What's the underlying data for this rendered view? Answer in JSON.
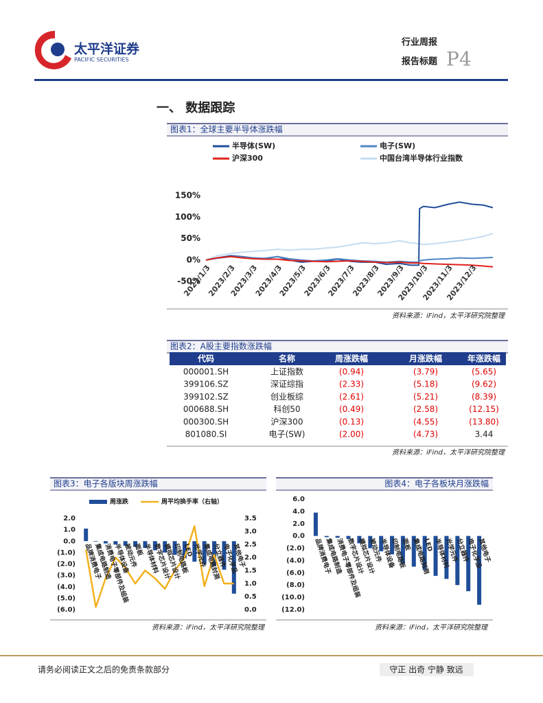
{
  "header": {
    "company": "太平洋证券",
    "company_en": "PACIFIC SECURITIES",
    "report_type": "行业周报",
    "report_title": "报告标题",
    "page": "P4"
  },
  "section_title": "一、 数据跟踪",
  "chart_data": [
    {
      "type": "line",
      "title": "图表1：全球主要半导体涨跌幅",
      "source": "资料来源：iFind，太平洋研究院整理",
      "x": [
        "2023/1/3",
        "2023/1/17",
        "2023/2/3",
        "2023/2/17",
        "2023/3/3",
        "2023/3/17",
        "2023/4/3",
        "2023/4/17",
        "2023/5/3",
        "2023/5/17",
        "2023/6/3",
        "2023/6/17",
        "2023/7/3",
        "2023/7/17",
        "2023/8/3",
        "2023/8/17",
        "2023/9/3",
        "2023/9/17",
        "2023/9/27",
        "2023/9/28",
        "2023/10/3",
        "2023/10/17",
        "2023/11/3",
        "2023/11/17",
        "2023/12/3",
        "2023/12/17",
        "2023/12/29"
      ],
      "series": [
        {
          "name": "半导体(SW)",
          "color": "#1f4e99",
          "values": [
            0,
            5,
            10,
            8,
            5,
            3,
            8,
            0,
            -5,
            -3,
            -2,
            2,
            -3,
            -5,
            -5,
            -10,
            -8,
            -12,
            -12,
            120,
            125,
            122,
            130,
            135,
            130,
            128,
            122
          ]
        },
        {
          "name": "电子(SW)",
          "color": "#4f86c6",
          "values": [
            0,
            4,
            8,
            7,
            5,
            4,
            8,
            3,
            0,
            -2,
            0,
            3,
            0,
            -2,
            -3,
            -5,
            -3,
            -5,
            -5,
            -2,
            0,
            2,
            3,
            5,
            4,
            5,
            6
          ]
        },
        {
          "name": "沪深300",
          "color": "#e0201b",
          "values": [
            0,
            5,
            8,
            5,
            3,
            2,
            2,
            -1,
            -2,
            -3,
            -4,
            -3,
            -2,
            -3,
            -5,
            -6,
            -5,
            -7,
            -7,
            -7,
            -8,
            -9,
            -10,
            -11,
            -12,
            -14,
            -16
          ]
        },
        {
          "name": "中国台湾半导体行业指数",
          "color": "#c5dcf0",
          "values": [
            0,
            10,
            15,
            18,
            20,
            22,
            25,
            23,
            25,
            25,
            28,
            30,
            35,
            40,
            38,
            40,
            45,
            40,
            38,
            38,
            36,
            38,
            42,
            45,
            50,
            55,
            62
          ]
        }
      ],
      "ylim": [
        -50,
        150
      ],
      "yticks": [
        {
          "value": -50,
          "label": "-50%"
        },
        {
          "value": 0,
          "label": "0%"
        },
        {
          "value": 50,
          "label": "50%"
        },
        {
          "value": 100,
          "label": "100%"
        },
        {
          "value": 150,
          "label": "150%"
        }
      ],
      "xticks": [
        "2023/1/3",
        "2023/2/3",
        "2023/3/3",
        "2023/4/3",
        "2023/5/3",
        "2023/6/3",
        "2023/7/3",
        "2023/8/3",
        "2023/9/3",
        "2023/10/3",
        "2023/11/3",
        "2023/12/3"
      ],
      "grid": false
    },
    {
      "type": "bar",
      "title": "图表3：电子各版块周涨跌幅",
      "source": "资料来源：iFind，太平洋研究院整理",
      "categories": [
        "品牌消费电子",
        "集成电路制造",
        "消费电子零部件及组装",
        "半导体设备",
        "被动元件",
        "面板",
        "半导体材料",
        "数字芯片设计",
        "模拟芯片设计",
        "印制电路板",
        "LED",
        "光学元件",
        "集成电路封测",
        "分立器件",
        "电子化学品",
        "其他电子"
      ],
      "series": [
        {
          "name": "周涨跌",
          "color": "#1f4e99",
          "values": [
            1.1,
            -0.05,
            -0.2,
            -0.3,
            -0.4,
            -0.5,
            -0.6,
            -0.8,
            -1.0,
            -1.2,
            -1.5,
            -1.8,
            -2.0,
            -2.2,
            -2.5,
            -4.6
          ]
        },
        {
          "name": "周平均换手率（右轴）",
          "color": "#f2b01e",
          "type": "line",
          "axis": "y2",
          "values": [
            2.3,
            0.1,
            1.2,
            2.0,
            1.6,
            1.0,
            1.5,
            1.2,
            0.8,
            1.5,
            2.0,
            3.2,
            0.9,
            2.1,
            1.0,
            1.0
          ]
        }
      ],
      "ylim": [
        -6,
        2
      ],
      "yticks": [
        {
          "value": 2,
          "label": "2.0"
        },
        {
          "value": 1,
          "label": "1.0"
        },
        {
          "value": 0,
          "label": "0.0"
        },
        {
          "value": -1,
          "label": "(1.0)"
        },
        {
          "value": -2,
          "label": "(2.0)"
        },
        {
          "value": -3,
          "label": "(3.0)"
        },
        {
          "value": -4,
          "label": "(4.0)"
        },
        {
          "value": -5,
          "label": "(5.0)"
        },
        {
          "value": -6,
          "label": "(6.0)"
        }
      ],
      "y2lim": [
        0,
        3.5
      ],
      "y2ticks": [
        {
          "value": 0,
          "label": "0.0"
        },
        {
          "value": 0.5,
          "label": "0.5"
        },
        {
          "value": 1,
          "label": "1.0"
        },
        {
          "value": 1.5,
          "label": "1.5"
        },
        {
          "value": 2,
          "label": "2.0"
        },
        {
          "value": 2.5,
          "label": "2.5"
        },
        {
          "value": 3,
          "label": "3.0"
        },
        {
          "value": 3.5,
          "label": "3.5"
        }
      ]
    },
    {
      "type": "bar",
      "title": "图表4：电子各板块月涨跌幅",
      "source": "资料来源：iFind，太平洋研究院整理",
      "categories": [
        "品牌消费电子",
        "集成电路制造",
        "消费电子零部件及组装",
        "数字芯片设计",
        "模拟芯片设计",
        "被动元件",
        "半导体设备",
        "印制电路板",
        "面板",
        "集成电路封测",
        "LED",
        "半导体材料",
        "光学元件",
        "分立器件",
        "电子化学品",
        "其他电子"
      ],
      "series": [
        {
          "name": "月涨跌",
          "color": "#1f4e99",
          "values": [
            3.8,
            -0.2,
            -0.3,
            -0.5,
            -1.2,
            -2.0,
            -2.5,
            -3.0,
            -4.5,
            -5.0,
            -5.5,
            -6.5,
            -7.0,
            -8.0,
            -9.0,
            -11.2
          ]
        }
      ],
      "ylim": [
        -12,
        6
      ],
      "yticks": [
        {
          "value": 6,
          "label": "6.0"
        },
        {
          "value": 4,
          "label": "4.0"
        },
        {
          "value": 2,
          "label": "2.0"
        },
        {
          "value": 0,
          "label": "0.0"
        },
        {
          "value": -2,
          "label": "(2.0)"
        },
        {
          "value": -4,
          "label": "(4.0)"
        },
        {
          "value": -6,
          "label": "(6.0)"
        },
        {
          "value": -8,
          "label": "(8.0)"
        },
        {
          "value": -10,
          "label": "(10.0)"
        },
        {
          "value": -12,
          "label": "(12.0)"
        }
      ]
    }
  ],
  "table": {
    "title": "图表2：A股主要指数涨跌幅",
    "columns": [
      "代码",
      "名称",
      "周涨跌幅",
      "月涨跌幅",
      "年涨跌幅"
    ],
    "rows": [
      [
        "000001.SH",
        "上证指数",
        "(0.94)",
        "(3.79)",
        "(5.65)"
      ],
      [
        "399106.SZ",
        "深证综指",
        "(2.33)",
        "(5.18)",
        "(9.62)"
      ],
      [
        "399102.SZ",
        "创业板综",
        "(2.61)",
        "(5.21)",
        "(8.39)"
      ],
      [
        "000688.SH",
        "科创50",
        "(0.49)",
        "(2.58)",
        "(12.15)"
      ],
      [
        "000300.SH",
        "沪深300",
        "(0.13)",
        "(4.55)",
        "(13.80)"
      ],
      [
        "801080.SI",
        "电子(SW)",
        "(2.00)",
        "(4.73)",
        "3.44"
      ]
    ],
    "source": "资料来源：iFind，太平洋研究院整理"
  },
  "footer": {
    "disclaimer": "请务必阅读正文之后的免责条款部分",
    "motto": "守正 出奇 宁静 致远"
  }
}
